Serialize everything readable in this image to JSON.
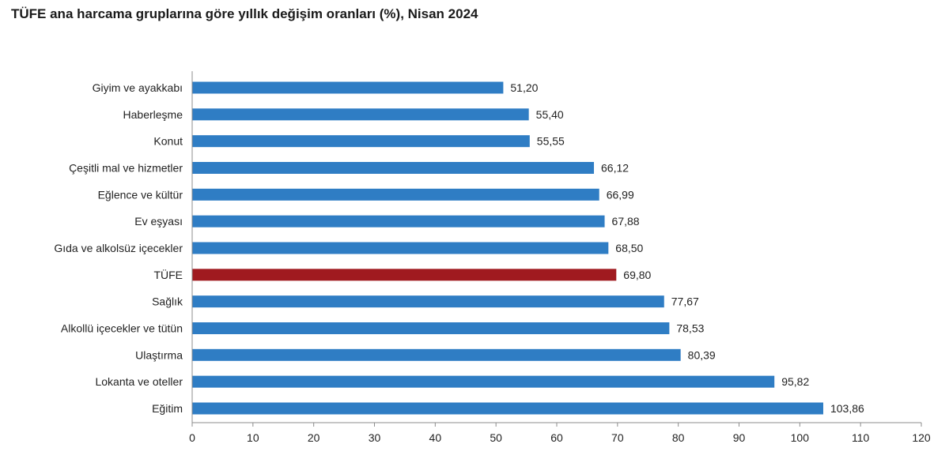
{
  "chart_data": {
    "type": "bar",
    "orientation": "horizontal",
    "title": "TÜFE ana harcama gruplarına göre yıllık değişim oranları (%), Nisan 2024",
    "categories": [
      "Giyim ve ayakkabı",
      "Haberleşme",
      "Konut",
      "Çeşitli mal ve hizmetler",
      "Eğlence ve kültür",
      "Ev eşyası",
      "Gıda ve alkolsüz içecekler",
      "TÜFE",
      "Sağlık",
      "Alkollü içecekler ve tütün",
      "Ulaştırma",
      "Lokanta ve oteller",
      "Eğitim"
    ],
    "values": [
      51.2,
      55.4,
      55.55,
      66.12,
      66.99,
      67.88,
      68.5,
      69.8,
      77.67,
      78.53,
      80.39,
      95.82,
      103.86
    ],
    "value_labels": [
      "51,20",
      "55,40",
      "55,55",
      "66,12",
      "66,99",
      "67,88",
      "68,50",
      "69,80",
      "77,67",
      "78,53",
      "80,39",
      "95,82",
      "103,86"
    ],
    "highlight_category": "TÜFE",
    "colors": {
      "bar": "#2f7dc4",
      "highlight": "#a01a1f",
      "axis": "#8c8c8c"
    },
    "xlim": [
      0,
      120
    ],
    "xticks": [
      0,
      10,
      20,
      30,
      40,
      50,
      60,
      70,
      80,
      90,
      100,
      110,
      120
    ],
    "xtick_labels": [
      "0",
      "10",
      "20",
      "30",
      "40",
      "50",
      "60",
      "70",
      "80",
      "90",
      "100",
      "110",
      "120"
    ],
    "xlabel": "",
    "ylabel": "",
    "grid": false,
    "legend": "none"
  }
}
